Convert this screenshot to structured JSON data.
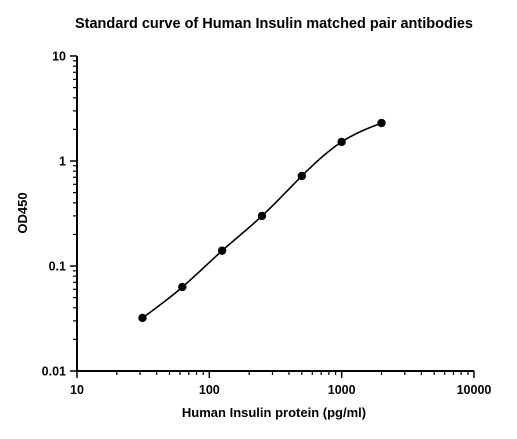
{
  "chart_data": {
    "type": "scatter",
    "title": "Standard curve of Human Insulin matched pair antibodies",
    "xlabel": "Human Insulin protein (pg/ml)",
    "ylabel": "OD450",
    "x_scale": "log",
    "y_scale": "log",
    "xlim": [
      10,
      10000
    ],
    "ylim": [
      0.01,
      10
    ],
    "x_ticks": [
      "10",
      "100",
      "1000",
      "10000"
    ],
    "y_ticks": [
      "0.01",
      "0.1",
      "1",
      "10"
    ],
    "grid": false,
    "fit_curve": true,
    "series": [
      {
        "x": [
          31.25,
          62.5,
          125,
          250,
          500,
          1000,
          2000
        ],
        "y": [
          0.032,
          0.063,
          0.14,
          0.3,
          0.72,
          1.52,
          2.3
        ]
      }
    ],
    "colors": {
      "points": "#000000",
      "curve": "#000000",
      "axis": "#000000"
    }
  }
}
